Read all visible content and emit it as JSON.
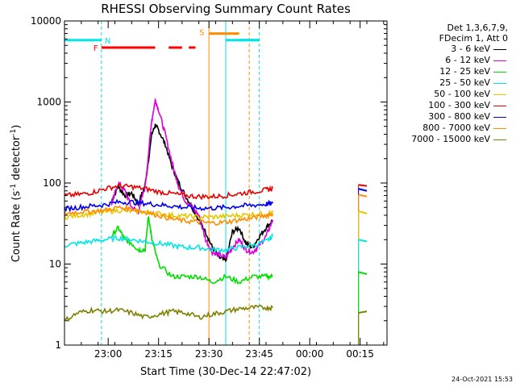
{
  "chart_data": {
    "type": "line",
    "title": "RHESSI Observing Summary Count Rates",
    "xlabel": "Start Time (30-Dec-14 22:47:02)",
    "ylabel_main": "Count Rate (s",
    "ylabel_sup1": "-1",
    "ylabel_mid": " detector",
    "ylabel_sup2": "-1",
    "ylabel_end": ")",
    "y_scale": "log",
    "ylim": [
      1,
      10000
    ],
    "xlim_minutes": [
      0,
      96
    ],
    "x_ticks": [
      {
        "t": 13,
        "label": "23:00"
      },
      {
        "t": 28,
        "label": "23:15"
      },
      {
        "t": 43,
        "label": "23:30"
      },
      {
        "t": 58,
        "label": "23:45"
      },
      {
        "t": 73,
        "label": "00:00"
      },
      {
        "t": 88,
        "label": "00:15"
      }
    ],
    "y_ticks": [
      {
        "v": 1,
        "label": "1"
      },
      {
        "v": 10,
        "label": "10"
      },
      {
        "v": 100,
        "label": "100"
      },
      {
        "v": 1000,
        "label": "1000"
      },
      {
        "v": 10000,
        "label": "10000"
      }
    ],
    "legend_header": [
      "Det 1,3,6,7,9,",
      "FDecim 1, Att 0"
    ],
    "legend_placement": "outside-right",
    "series": [
      {
        "name": "3 - 6 keV",
        "color": "#000000",
        "points": [
          [
            14,
            60
          ],
          [
            16,
            90
          ],
          [
            18,
            70
          ],
          [
            20,
            75
          ],
          [
            22,
            55
          ],
          [
            24,
            95
          ],
          [
            26,
            400
          ],
          [
            27,
            520
          ],
          [
            28,
            450
          ],
          [
            30,
            300
          ],
          [
            32,
            160
          ],
          [
            34,
            100
          ],
          [
            36,
            70
          ],
          [
            38,
            50
          ],
          [
            40,
            35
          ],
          [
            42,
            25
          ],
          [
            44,
            16
          ],
          [
            46,
            12
          ],
          [
            48,
            11
          ],
          [
            50,
            25
          ],
          [
            52,
            28
          ],
          [
            54,
            18
          ],
          [
            56,
            16
          ],
          [
            58,
            22
          ],
          [
            60,
            28
          ],
          [
            62,
            35
          ]
        ]
      },
      {
        "name": "6 - 12 keV",
        "color": "#dd00dd",
        "points": [
          [
            14,
            55
          ],
          [
            16,
            100
          ],
          [
            18,
            80
          ],
          [
            20,
            50
          ],
          [
            22,
            45
          ],
          [
            24,
            90
          ],
          [
            26,
            600
          ],
          [
            27,
            1050
          ],
          [
            28,
            800
          ],
          [
            30,
            400
          ],
          [
            32,
            180
          ],
          [
            34,
            90
          ],
          [
            36,
            60
          ],
          [
            38,
            50
          ],
          [
            40,
            40
          ],
          [
            42,
            20
          ],
          [
            44,
            14
          ],
          [
            46,
            13
          ],
          [
            48,
            12
          ],
          [
            50,
            16
          ],
          [
            52,
            20
          ],
          [
            54,
            15
          ],
          [
            56,
            14
          ],
          [
            58,
            17
          ],
          [
            60,
            22
          ],
          [
            62,
            35
          ]
        ]
      },
      {
        "name": "12 - 25 keV",
        "color": "#00dd00",
        "points": [
          [
            14,
            22
          ],
          [
            16,
            28
          ],
          [
            18,
            20
          ],
          [
            20,
            18
          ],
          [
            22,
            15
          ],
          [
            24,
            15
          ],
          [
            25,
            40
          ],
          [
            26,
            20
          ],
          [
            28,
            10
          ],
          [
            32,
            7
          ],
          [
            36,
            7
          ],
          [
            40,
            7
          ],
          [
            44,
            6
          ],
          [
            48,
            7
          ],
          [
            52,
            6
          ],
          [
            56,
            7
          ],
          [
            60,
            7
          ],
          [
            62,
            7
          ]
        ]
      },
      {
        "name": "25 - 50 keV",
        "color": "#00e6e6",
        "points": [
          [
            0,
            17
          ],
          [
            4,
            18
          ],
          [
            8,
            19
          ],
          [
            12,
            20
          ],
          [
            16,
            21
          ],
          [
            20,
            20
          ],
          [
            24,
            19
          ],
          [
            28,
            18
          ],
          [
            32,
            17
          ],
          [
            36,
            16
          ],
          [
            40,
            16
          ],
          [
            44,
            15
          ],
          [
            48,
            15
          ],
          [
            52,
            16
          ],
          [
            56,
            17
          ],
          [
            60,
            19
          ],
          [
            62,
            22
          ]
        ]
      },
      {
        "name": "50 - 100 keV",
        "color": "#e6c800",
        "points": [
          [
            0,
            38
          ],
          [
            4,
            40
          ],
          [
            8,
            42
          ],
          [
            12,
            44
          ],
          [
            16,
            46
          ],
          [
            20,
            45
          ],
          [
            24,
            44
          ],
          [
            28,
            42
          ],
          [
            32,
            40
          ],
          [
            36,
            39
          ],
          [
            40,
            38
          ],
          [
            44,
            38
          ],
          [
            48,
            39
          ],
          [
            52,
            40
          ],
          [
            56,
            41
          ],
          [
            60,
            42
          ],
          [
            62,
            43
          ]
        ]
      },
      {
        "name": "100 - 300 keV",
        "color": "#e60000",
        "points": [
          [
            0,
            70
          ],
          [
            4,
            72
          ],
          [
            8,
            76
          ],
          [
            12,
            85
          ],
          [
            16,
            92
          ],
          [
            20,
            90
          ],
          [
            24,
            85
          ],
          [
            28,
            78
          ],
          [
            32,
            74
          ],
          [
            36,
            70
          ],
          [
            40,
            68
          ],
          [
            44,
            68
          ],
          [
            48,
            70
          ],
          [
            52,
            74
          ],
          [
            56,
            78
          ],
          [
            60,
            82
          ],
          [
            62,
            86
          ]
        ]
      },
      {
        "name": "300 - 800 keV",
        "color": "#0000ee",
        "points": [
          [
            0,
            48
          ],
          [
            4,
            50
          ],
          [
            8,
            52
          ],
          [
            12,
            54
          ],
          [
            16,
            58
          ],
          [
            20,
            58
          ],
          [
            24,
            56
          ],
          [
            28,
            54
          ],
          [
            32,
            52
          ],
          [
            36,
            50
          ],
          [
            40,
            49
          ],
          [
            44,
            49
          ],
          [
            48,
            50
          ],
          [
            52,
            52
          ],
          [
            56,
            53
          ],
          [
            60,
            55
          ],
          [
            62,
            56
          ]
        ]
      },
      {
        "name": "800 - 7000 keV",
        "color": "#ff8c00",
        "points": [
          [
            0,
            42
          ],
          [
            4,
            44
          ],
          [
            8,
            45
          ],
          [
            12,
            46
          ],
          [
            16,
            50
          ],
          [
            20,
            48
          ],
          [
            24,
            44
          ],
          [
            28,
            40
          ],
          [
            32,
            36
          ],
          [
            36,
            34
          ],
          [
            40,
            33
          ],
          [
            44,
            32
          ],
          [
            48,
            33
          ],
          [
            52,
            35
          ],
          [
            56,
            37
          ],
          [
            60,
            40
          ],
          [
            62,
            42
          ]
        ]
      },
      {
        "name": "7000 - 15000 keV",
        "color": "#808000",
        "points": [
          [
            0,
            2
          ],
          [
            4,
            2.5
          ],
          [
            8,
            2.7
          ],
          [
            12,
            2.6
          ],
          [
            16,
            2.7
          ],
          [
            20,
            2.5
          ],
          [
            24,
            2.2
          ],
          [
            28,
            2.4
          ],
          [
            32,
            2.6
          ],
          [
            36,
            2.5
          ],
          [
            40,
            2.2
          ],
          [
            44,
            2.4
          ],
          [
            48,
            2.6
          ],
          [
            52,
            2.8
          ],
          [
            56,
            2.9
          ],
          [
            60,
            2.9
          ],
          [
            62,
            2.9
          ]
        ]
      }
    ],
    "post_gap_series": [
      {
        "color": "#e60000",
        "values_at": [
          [
            87.5,
            95
          ],
          [
            90,
            92
          ]
        ]
      },
      {
        "color": "#0000ee",
        "values_at": [
          [
            87.5,
            85
          ],
          [
            90,
            80
          ]
        ]
      },
      {
        "color": "#ff8c00",
        "values_at": [
          [
            87.5,
            72
          ],
          [
            90,
            68
          ]
        ]
      },
      {
        "color": "#e6c800",
        "values_at": [
          [
            87.5,
            45
          ],
          [
            90,
            42
          ]
        ]
      },
      {
        "color": "#00e6e6",
        "values_at": [
          [
            87.5,
            20
          ],
          [
            90,
            19
          ]
        ]
      },
      {
        "color": "#00dd00",
        "values_at": [
          [
            87.5,
            8
          ],
          [
            90,
            7.5
          ]
        ]
      },
      {
        "color": "#808000",
        "values_at": [
          [
            87.5,
            2.5
          ],
          [
            90,
            2.6
          ]
        ]
      }
    ],
    "annotations": {
      "night_bar": {
        "label": "N",
        "color": "#00e6e6",
        "segments": [
          [
            0,
            11
          ],
          [
            48,
            58
          ],
          [
            52,
            58
          ]
        ]
      },
      "flare_bar": {
        "label": "F",
        "color": "#ff0000",
        "segments": [
          [
            11,
            27
          ],
          [
            31,
            35
          ],
          [
            37,
            39
          ]
        ]
      },
      "saa_bar": {
        "label": "S",
        "color": "#ff8c00",
        "segments": [
          [
            43,
            52
          ]
        ]
      },
      "night_lines_t": [
        0,
        11,
        48,
        58
      ],
      "saa_lines_t": [
        43,
        55
      ]
    }
  },
  "footer": "24-Oct-2021 15:53"
}
